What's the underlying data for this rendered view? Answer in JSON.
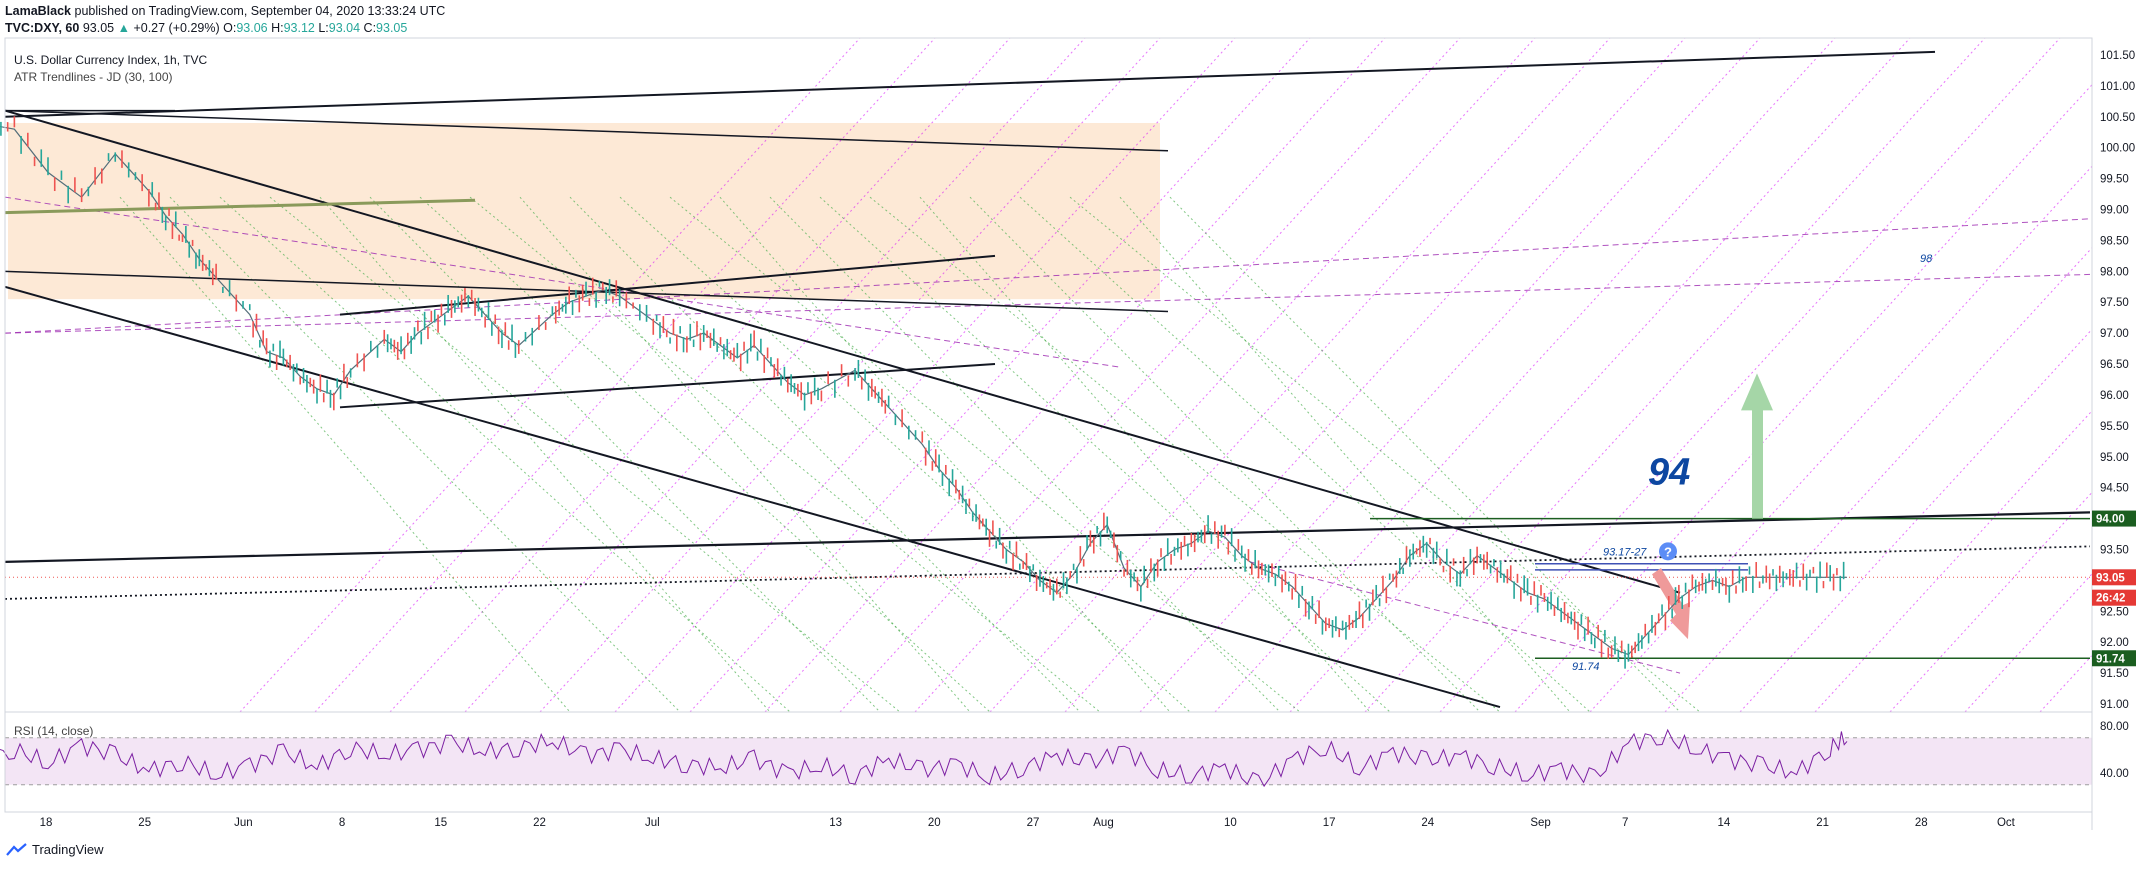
{
  "header": {
    "author": "LamaBlack",
    "published": "published on TradingView.com, September 04, 2020 13:33:24 UTC",
    "symbol": "TVC:DXY, 60",
    "last": "93.05",
    "change": "+0.27 (+0.29%)",
    "o_label": "O:",
    "o_val": "93.06",
    "h_label": "H:",
    "h_val": "93.12",
    "l_label": "L:",
    "l_val": "93.04",
    "c_label": "C:",
    "c_val": "93.05"
  },
  "legend": {
    "title": "U.S. Dollar Currency Index, 1h, TVC",
    "indicator": "ATR Trendlines - JD (30, 100)"
  },
  "rsi": {
    "label": "RSI (14, close)",
    "levels": [
      "80.00",
      "40.00"
    ],
    "band": [
      30,
      70
    ]
  },
  "footer": {
    "brand": "TradingView"
  },
  "annotations": {
    "big_level": "94",
    "resistance_zone": "93.17-27",
    "low_label": "91.74",
    "diag_label": "98",
    "question_mark": "?"
  },
  "price_badges": {
    "level_94": "94.00",
    "current": "93.05",
    "countdown": "26:42",
    "level_9174": "91.74"
  },
  "colors": {
    "bull": "#26a69a",
    "bear": "#ef5350",
    "resistance_bg": "#fde9d6",
    "magenta": "#d500f9",
    "green_dotted": "#4caf50",
    "rsi_line": "#7b1fa2",
    "rsi_bg": "#f3e5f5",
    "badge_dark": "#1b5e20",
    "badge_red": "#e53935",
    "annotation_blue": "#0d47a1"
  },
  "chart_data": {
    "type": "line",
    "title": "U.S. Dollar Currency Index, 1h, TVC",
    "xlabel": "",
    "ylabel": "",
    "ylim": [
      91.0,
      101.75
    ],
    "y_ticks": [
      "101.50",
      "101.00",
      "100.50",
      "100.00",
      "99.50",
      "99.00",
      "98.50",
      "98.00",
      "97.50",
      "97.00",
      "96.50",
      "96.00",
      "95.50",
      "95.00",
      "94.50",
      "94.00",
      "93.50",
      "93.00",
      "92.50",
      "92.00",
      "91.50",
      "91.00"
    ],
    "x_ticks": [
      "18",
      "25",
      "Jun",
      "8",
      "15",
      "22",
      "Jul",
      "13",
      "20",
      "27",
      "Aug",
      "10",
      "17",
      "24",
      "Sep",
      "7",
      "14",
      "21",
      "28",
      "Oct"
    ],
    "x_days": [
      0,
      7,
      14,
      21,
      28,
      35,
      43,
      56,
      63,
      70,
      75,
      84,
      91,
      98,
      106,
      112,
      119,
      126,
      133,
      139
    ],
    "series": [
      {
        "x": [
          0,
          2,
          4,
          6,
          8,
          10,
          11,
          12,
          13,
          14,
          16,
          17,
          18,
          19,
          20,
          21,
          22,
          24,
          25,
          26,
          27,
          28,
          29,
          30,
          31,
          32,
          34,
          35,
          36,
          37,
          38,
          40,
          41,
          42,
          43,
          44,
          45,
          46,
          47,
          48,
          49,
          50,
          52,
          53,
          54,
          56,
          57,
          58,
          59,
          60,
          61,
          62,
          63,
          64,
          65,
          66,
          67,
          68,
          69,
          70,
          71,
          72,
          73,
          74,
          75,
          76,
          77,
          78,
          79,
          80,
          81,
          82,
          83,
          84,
          85,
          86,
          87,
          88,
          89,
          90,
          91,
          92,
          93,
          94,
          95,
          96,
          97,
          98,
          99,
          100,
          101,
          102,
          103,
          104,
          105,
          106,
          107,
          108,
          109,
          110,
          111
        ],
        "y": [
          100.4,
          100.3,
          99.6,
          99.2,
          99.9,
          99.3,
          98.9,
          98.6,
          98.2,
          97.9,
          97.3,
          96.7,
          96.6,
          96.3,
          96.1,
          96.0,
          96.4,
          96.9,
          96.7,
          97.0,
          97.2,
          97.4,
          97.6,
          97.3,
          97.0,
          96.8,
          97.3,
          97.5,
          97.6,
          97.7,
          97.6,
          97.2,
          97.0,
          96.9,
          97.0,
          96.8,
          96.6,
          96.8,
          96.5,
          96.2,
          96.0,
          96.1,
          96.4,
          96.1,
          95.8,
          95.2,
          94.8,
          94.5,
          94.1,
          93.8,
          93.5,
          93.3,
          93.0,
          92.8,
          93.1,
          93.6,
          93.9,
          93.2,
          92.9,
          93.3,
          93.5,
          93.6,
          93.8,
          93.7,
          93.4,
          93.2,
          93.1,
          92.9,
          92.6,
          92.3,
          92.2,
          92.4,
          92.7,
          93.0,
          93.4,
          93.6,
          93.3,
          93.1,
          93.4,
          93.2,
          93.0,
          92.8,
          92.7,
          92.5,
          92.3,
          92.1,
          91.9,
          91.8,
          92.1,
          92.4,
          92.7,
          92.9,
          93.0,
          92.9,
          93.05,
          93.05,
          93.05,
          93.05,
          93.05,
          93.05,
          93.05
        ]
      }
    ],
    "rsi_series": {
      "x": [
        0,
        2,
        4,
        6,
        8,
        10,
        12,
        14,
        16,
        18,
        20,
        22,
        24,
        26,
        28,
        30,
        32,
        34,
        36,
        38,
        40,
        42,
        44,
        46,
        48,
        50,
        52,
        54,
        56,
        58,
        60,
        62,
        64,
        66,
        68,
        70,
        72,
        74,
        76,
        78,
        80,
        82,
        84,
        86,
        88,
        90,
        92,
        94,
        96,
        98,
        100,
        102,
        104,
        106,
        108,
        110,
        111
      ],
      "y": [
        52,
        60,
        48,
        64,
        55,
        42,
        50,
        38,
        47,
        58,
        45,
        62,
        55,
        60,
        66,
        58,
        62,
        67,
        55,
        60,
        52,
        48,
        44,
        52,
        40,
        46,
        38,
        52,
        42,
        48,
        36,
        45,
        55,
        48,
        60,
        42,
        38,
        45,
        30,
        52,
        62,
        44,
        58,
        50,
        55,
        46,
        38,
        44,
        35,
        66,
        72,
        60,
        52,
        46,
        40,
        62,
        70
      ]
    },
    "horizontal_levels": [
      94.0,
      91.74
    ],
    "current_price": 93.05
  }
}
